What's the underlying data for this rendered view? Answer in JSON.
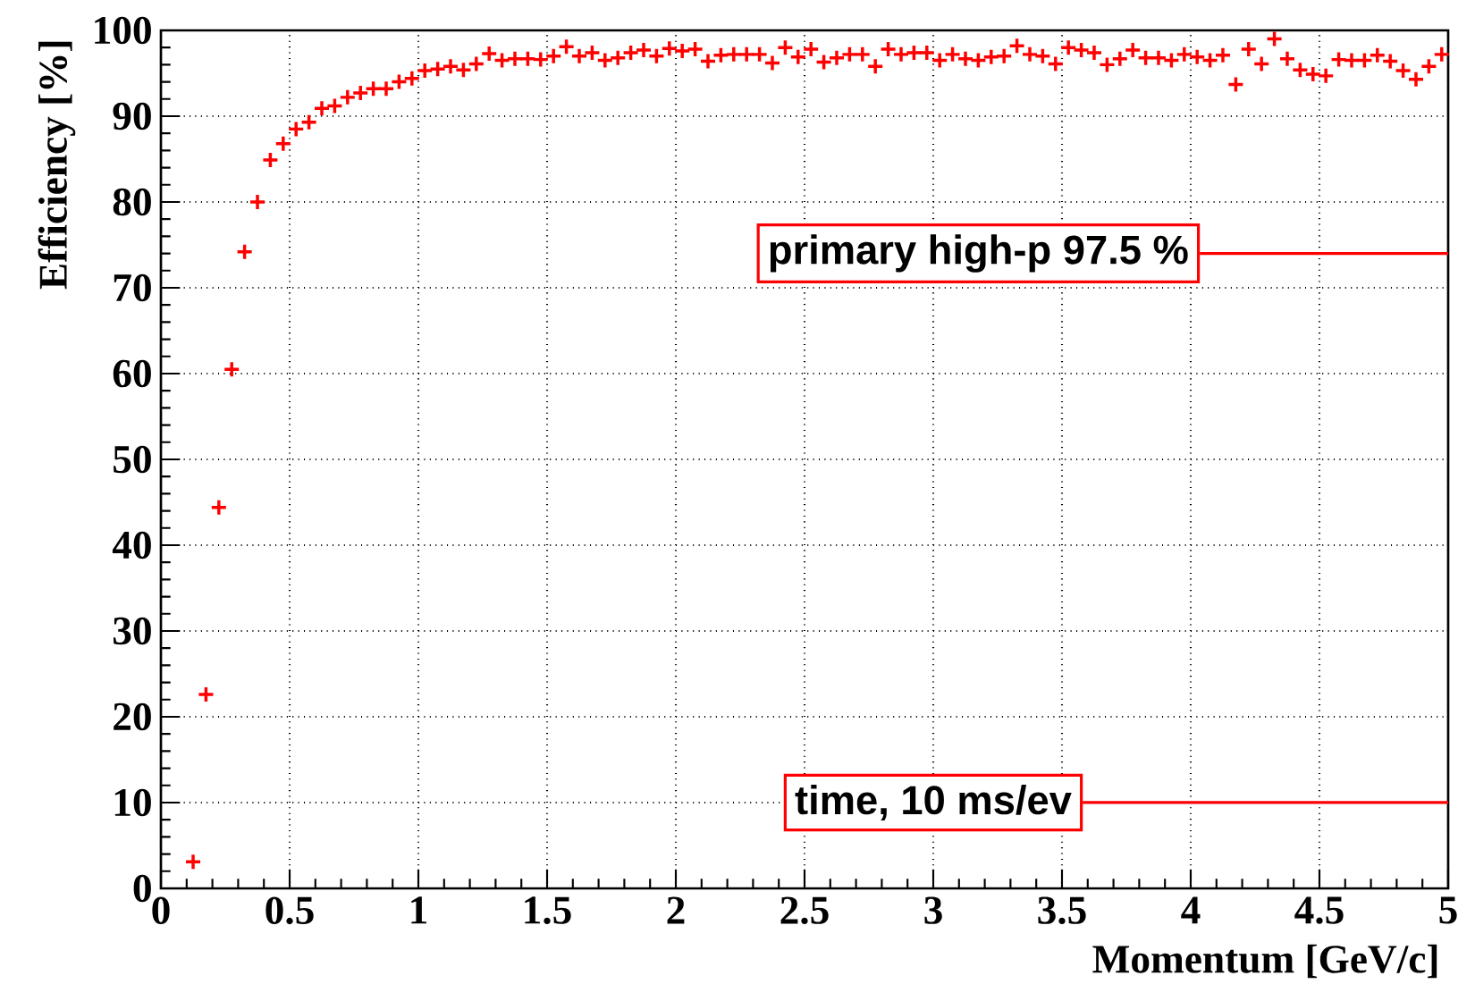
{
  "chart_data": {
    "type": "scatter",
    "xlabel": "Momentum [GeV/c]",
    "ylabel": "Efficiency [%]",
    "color": "#ff0000",
    "x": [
      0.125,
      0.175,
      0.225,
      0.275,
      0.325,
      0.375,
      0.425,
      0.475,
      0.525,
      0.575,
      0.625,
      0.675,
      0.725,
      0.775,
      0.825,
      0.875,
      0.925,
      0.975,
      1.025,
      1.075,
      1.125,
      1.175,
      1.225,
      1.275,
      1.325,
      1.375,
      1.425,
      1.475,
      1.525,
      1.575,
      1.625,
      1.675,
      1.725,
      1.775,
      1.825,
      1.875,
      1.925,
      1.975,
      2.025,
      2.075,
      2.125,
      2.175,
      2.225,
      2.275,
      2.325,
      2.375,
      2.425,
      2.475,
      2.525,
      2.575,
      2.625,
      2.675,
      2.725,
      2.775,
      2.825,
      2.875,
      2.925,
      2.975,
      3.025,
      3.075,
      3.125,
      3.175,
      3.225,
      3.275,
      3.325,
      3.375,
      3.425,
      3.475,
      3.525,
      3.575,
      3.625,
      3.675,
      3.725,
      3.775,
      3.825,
      3.875,
      3.925,
      3.975,
      4.025,
      4.075,
      4.125,
      4.175,
      4.225,
      4.275,
      4.325,
      4.375,
      4.425,
      4.475,
      4.525,
      4.575,
      4.625,
      4.675,
      4.725,
      4.775,
      4.825,
      4.875,
      4.925,
      4.975
    ],
    "values": [
      3.1,
      22.6,
      44.4,
      60.5,
      74.2,
      80.0,
      84.9,
      86.8,
      88.5,
      89.3,
      90.9,
      91.2,
      92.2,
      92.7,
      93.2,
      93.2,
      94.0,
      94.4,
      95.3,
      95.5,
      95.8,
      95.4,
      96.1,
      97.3,
      96.5,
      96.7,
      96.7,
      96.6,
      97.0,
      98.1,
      97.0,
      97.4,
      96.5,
      96.8,
      97.4,
      97.7,
      97.0,
      97.9,
      97.6,
      97.8,
      96.4,
      97.1,
      97.2,
      97.2,
      97.2,
      96.2,
      98.0,
      96.9,
      97.8,
      96.3,
      96.8,
      97.2,
      97.2,
      95.8,
      97.8,
      97.2,
      97.4,
      97.4,
      96.5,
      97.2,
      96.7,
      96.5,
      96.9,
      97.0,
      98.2,
      97.2,
      97.0,
      96.1,
      98.0,
      97.7,
      97.4,
      96.0,
      96.7,
      97.7,
      96.8,
      96.8,
      96.5,
      97.2,
      96.9,
      96.5,
      97.1,
      93.7,
      97.8,
      96.1,
      99.0,
      96.7,
      95.4,
      94.9,
      94.7,
      96.6,
      96.5,
      96.5,
      97.1,
      96.4,
      95.3,
      94.3,
      95.8,
      97.2
    ],
    "xlim": [
      0,
      5
    ],
    "ylim": [
      0,
      100
    ],
    "xticks": [
      0,
      0.5,
      1,
      1.5,
      2,
      2.5,
      3,
      3.5,
      4,
      4.5,
      5
    ],
    "yticks": [
      0,
      10,
      20,
      30,
      40,
      50,
      60,
      70,
      80,
      90,
      100
    ],
    "grid": true,
    "marker": "cross",
    "annotations": [
      "primary high-p 97.5 %",
      "time, 10 ms/ev"
    ]
  }
}
